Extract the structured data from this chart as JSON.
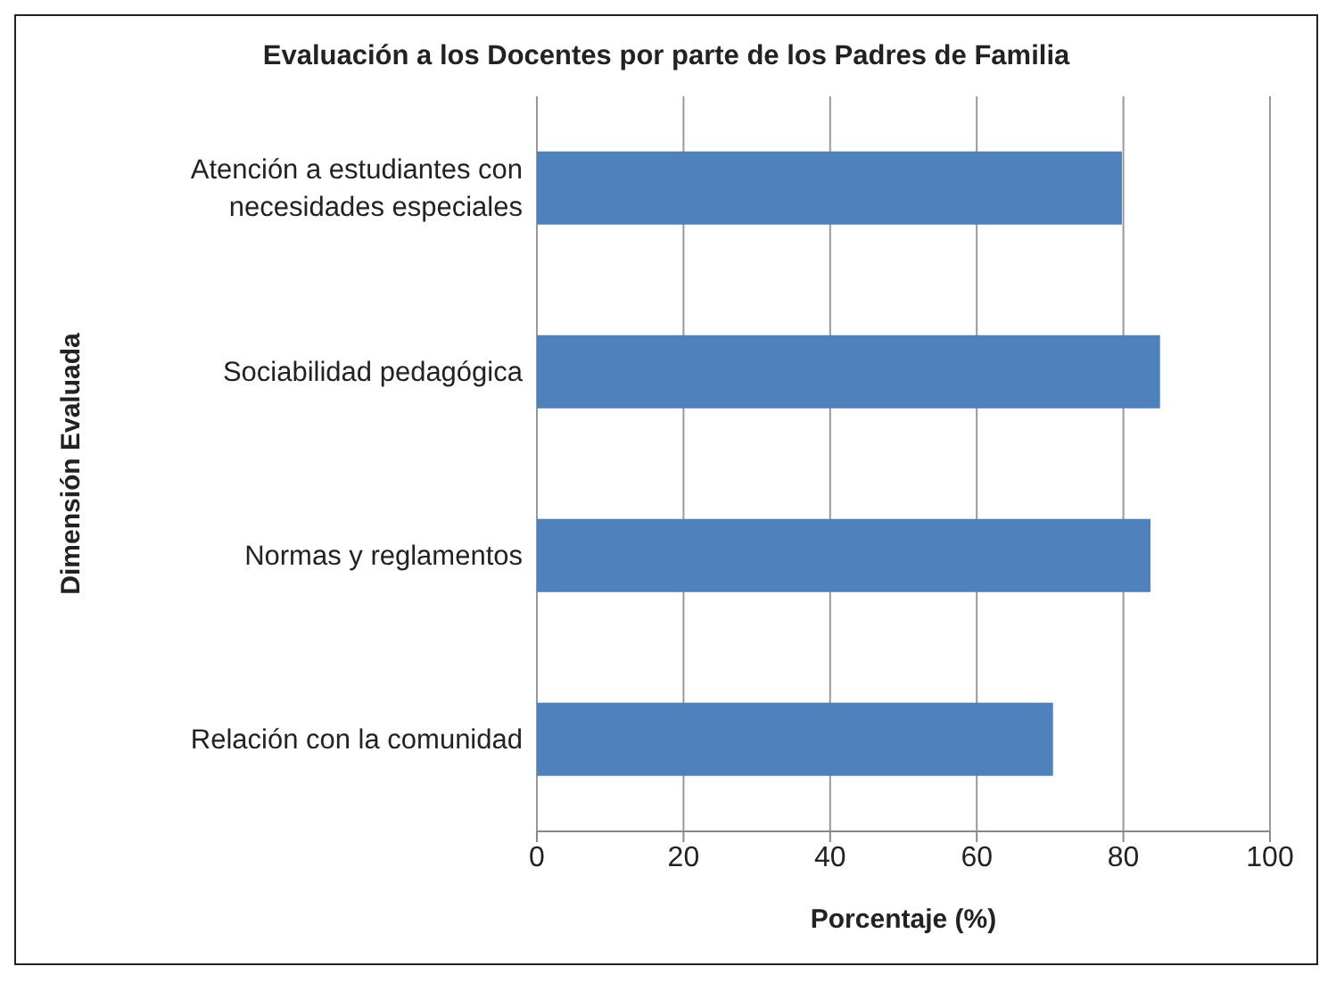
{
  "chart_data": {
    "type": "bar",
    "orientation": "horizontal",
    "title": "Evaluación a los Docentes por parte de los Padres de Familia",
    "xlabel": "Porcentaje (%)",
    "ylabel": "Dimensión Evaluada",
    "categories": [
      "Atención a estudiantes con necesidades especiales",
      "Sociabilidad pedagógica",
      "Normas y reglamentos",
      "Relación con la comunidad"
    ],
    "values": [
      79.8,
      85,
      83.7,
      70.4
    ],
    "color": "#4f81bd",
    "xlim": [
      0,
      100
    ],
    "xticks": [
      0,
      20,
      40,
      60,
      80,
      100
    ],
    "grid": "x"
  }
}
